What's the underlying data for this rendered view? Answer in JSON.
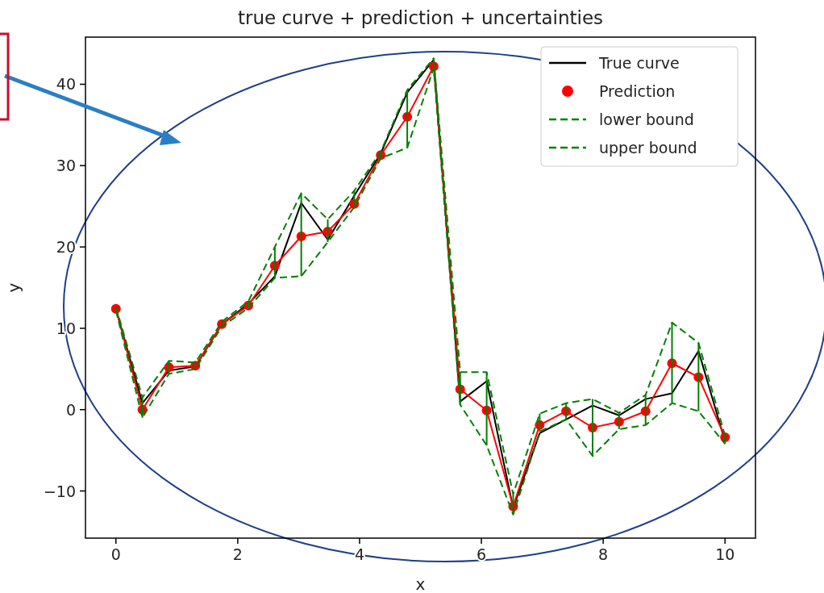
{
  "chart_data": {
    "type": "line",
    "title": "true curve + prediction + uncertainties",
    "xlabel": "x",
    "ylabel": "y",
    "x": [
      0,
      0.435,
      0.87,
      1.304,
      1.739,
      2.174,
      2.609,
      3.043,
      3.478,
      3.913,
      4.348,
      4.783,
      5.217,
      5.652,
      6.087,
      6.522,
      6.957,
      7.391,
      7.826,
      8.261,
      8.696,
      9.13,
      9.565,
      10
    ],
    "series": [
      {
        "name": "True curve",
        "color": "#000000",
        "line_style": "solid",
        "values": [
          12.4,
          0.8,
          4.8,
          5.3,
          10.5,
          13.0,
          16.4,
          25.4,
          20.9,
          26.3,
          31.5,
          39.0,
          43.0,
          1.0,
          3.5,
          -12.1,
          -2.9,
          -1.2,
          0.5,
          -0.7,
          1.3,
          2.0,
          7.2,
          -3.9
        ]
      },
      {
        "name": "Prediction",
        "color": "#ff0000",
        "line_style": "solid",
        "marker": "circle",
        "values": [
          12.4,
          0.0,
          5.2,
          5.4,
          10.5,
          12.8,
          17.7,
          21.3,
          21.9,
          25.3,
          31.3,
          36.0,
          42.2,
          2.5,
          -0.1,
          -11.9,
          -1.9,
          -0.2,
          -2.2,
          -1.5,
          -0.2,
          5.7,
          4.0,
          -3.4
        ]
      },
      {
        "name": "lower bound",
        "color": "#008000",
        "line_style": "dashed",
        "values": [
          12.2,
          -1.0,
          4.4,
          5.0,
          10.2,
          12.5,
          16.2,
          16.4,
          20.6,
          24.9,
          30.9,
          32.2,
          42.0,
          0.6,
          -4.4,
          -12.9,
          -2.7,
          -1.2,
          -5.7,
          -2.4,
          -1.9,
          0.8,
          -0.2,
          -4.2
        ],
        "errors": [
          [
            12.2,
            12.6
          ],
          [
            -1.0,
            1.5
          ],
          [
            4.4,
            6.0
          ],
          [
            5.0,
            5.8
          ],
          [
            10.2,
            10.8
          ],
          [
            12.5,
            13.3
          ],
          [
            16.2,
            20.0
          ],
          [
            16.4,
            26.6
          ],
          [
            20.6,
            23.4
          ],
          [
            24.9,
            26.9
          ],
          [
            30.9,
            31.7
          ],
          [
            32.2,
            39.3
          ],
          [
            42.0,
            43.2
          ],
          [
            0.6,
            4.6
          ],
          [
            -4.4,
            4.6
          ],
          [
            -12.9,
            -10.4
          ],
          [
            -2.7,
            -0.5
          ],
          [
            -1.2,
            0.8
          ],
          [
            -5.7,
            1.3
          ],
          [
            -2.4,
            -0.4
          ],
          [
            -1.9,
            1.8
          ],
          [
            0.8,
            10.7
          ],
          [
            -0.2,
            8.2
          ],
          [
            -4.2,
            -3.2
          ]
        ]
      },
      {
        "name": "upper bound",
        "color": "#008000",
        "line_style": "dashed",
        "values": [
          12.6,
          1.5,
          6.0,
          5.8,
          10.8,
          13.3,
          20.0,
          26.6,
          23.4,
          26.9,
          31.7,
          39.3,
          43.2,
          4.6,
          4.6,
          -10.4,
          -0.5,
          0.8,
          1.3,
          -0.4,
          1.8,
          10.7,
          8.2,
          -3.2
        ]
      }
    ],
    "xlim": [
      -0.5,
      10.5
    ],
    "ylim": [
      -15.8,
      45.8
    ],
    "xticks": [
      0,
      2,
      4,
      6,
      8,
      10
    ],
    "yticks": [
      -10,
      0,
      10,
      20,
      30,
      40
    ],
    "grid": false,
    "legend": "top right"
  }
}
